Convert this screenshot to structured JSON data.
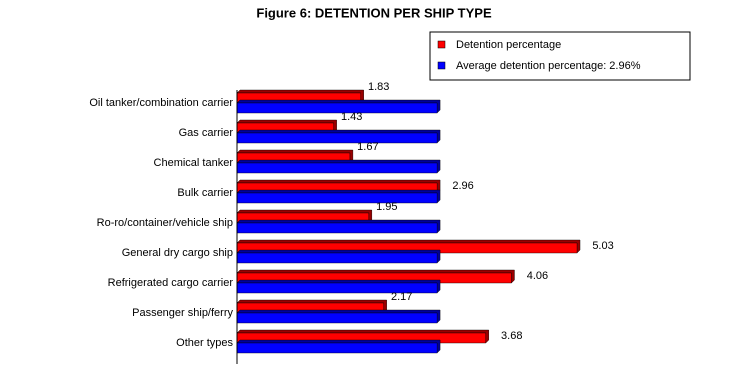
{
  "chart_data": {
    "type": "hbar",
    "title": "Figure 6: DETENTION PER SHIP TYPE",
    "categories": [
      "Oil tanker/combination carrier",
      "Gas carrier",
      "Chemical tanker",
      "Bulk carrier",
      "Ro-ro/container/vehicle ship",
      "General dry cargo ship",
      "Refrigerated cargo carrier",
      "Passenger ship/ferry",
      "Other types"
    ],
    "series": [
      {
        "name": "Detention percentage",
        "color": "#ff0000",
        "values": [
          1.83,
          1.43,
          1.67,
          2.96,
          1.95,
          5.03,
          4.06,
          2.17,
          3.68
        ]
      },
      {
        "name": "Average detention percentage: 2.96%",
        "color": "#0000ff",
        "values": [
          2.96,
          2.96,
          2.96,
          2.96,
          2.96,
          2.96,
          2.96,
          2.96,
          2.96
        ]
      }
    ],
    "xlim": [
      0,
      7.5
    ],
    "legend": "top-right"
  }
}
